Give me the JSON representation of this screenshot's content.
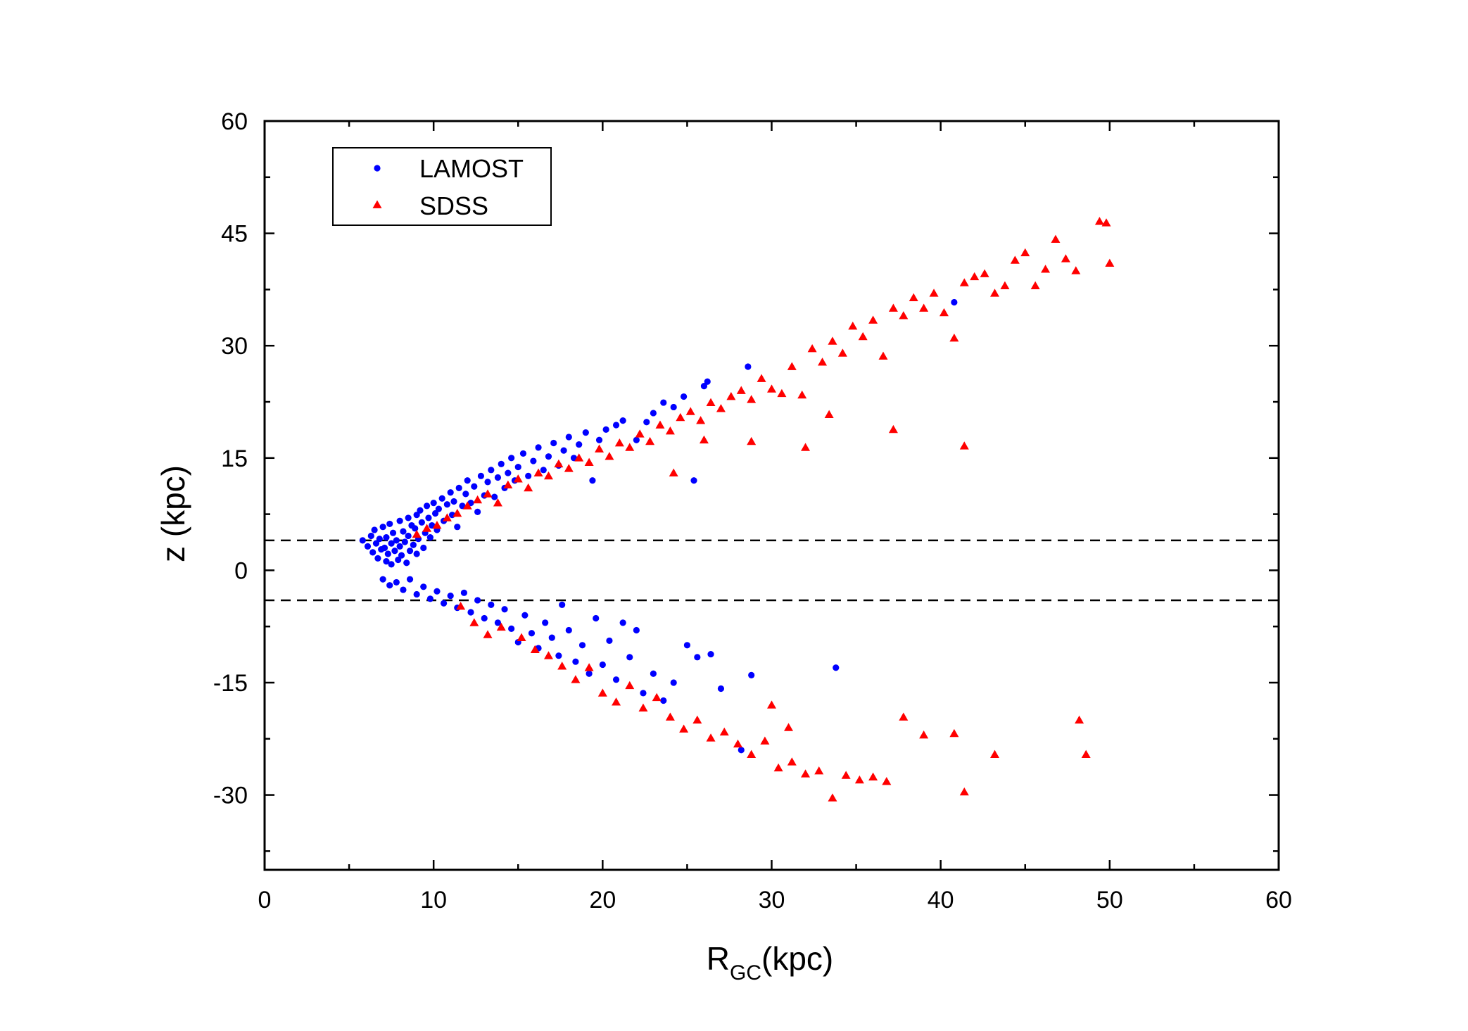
{
  "chart_data": {
    "type": "scatter",
    "title": "",
    "xlabel": "R",
    "xlabel_subscript": "GC",
    "xlabel_suffix": "(kpc)",
    "ylabel": "z (kpc)",
    "xlim": [
      0,
      60
    ],
    "ylim": [
      -40,
      60
    ],
    "xticks": [
      0,
      10,
      20,
      30,
      40,
      50,
      60
    ],
    "yticks": [
      -30,
      -15,
      0,
      15,
      30,
      45,
      60
    ],
    "x_minor_step": 5,
    "y_minor_step": 7.5,
    "grid": false,
    "legend_position": "top-left",
    "reference_lines": [
      {
        "style": "dashed",
        "y": 4
      },
      {
        "style": "dashed",
        "y": -4
      }
    ],
    "series": [
      {
        "name": "LAMOST",
        "marker": "circle",
        "color": "#0000ff",
        "points": [
          [
            5.8,
            4
          ],
          [
            6.1,
            3.2
          ],
          [
            6.3,
            4.6
          ],
          [
            6.4,
            2.4
          ],
          [
            6.5,
            5.4
          ],
          [
            6.6,
            3.6
          ],
          [
            6.7,
            1.6
          ],
          [
            6.8,
            4.2
          ],
          [
            6.9,
            2.8
          ],
          [
            7.0,
            5.8
          ],
          [
            7.1,
            3.0
          ],
          [
            7.2,
            1.2
          ],
          [
            7.2,
            4.4
          ],
          [
            7.3,
            2.2
          ],
          [
            7.4,
            6.2
          ],
          [
            7.5,
            3.6
          ],
          [
            7.5,
            0.8
          ],
          [
            7.6,
            5.0
          ],
          [
            7.7,
            2.6
          ],
          [
            7.8,
            4.0
          ],
          [
            7.9,
            1.4
          ],
          [
            8.0,
            6.6
          ],
          [
            8.0,
            3.2
          ],
          [
            8.1,
            2.0
          ],
          [
            8.2,
            5.2
          ],
          [
            8.3,
            3.8
          ],
          [
            8.4,
            1.0
          ],
          [
            8.5,
            7.0
          ],
          [
            8.5,
            4.6
          ],
          [
            8.6,
            2.6
          ],
          [
            8.7,
            6.0
          ],
          [
            8.8,
            3.4
          ],
          [
            8.9,
            5.6
          ],
          [
            9.0,
            7.4
          ],
          [
            9.0,
            2.2
          ],
          [
            9.1,
            4.2
          ],
          [
            9.2,
            8.0
          ],
          [
            9.3,
            6.4
          ],
          [
            9.4,
            3.0
          ],
          [
            9.5,
            5.0
          ],
          [
            9.6,
            8.6
          ],
          [
            9.7,
            7.0
          ],
          [
            9.8,
            4.4
          ],
          [
            9.9,
            6.0
          ],
          [
            10.0,
            9.0
          ],
          [
            10.1,
            7.6
          ],
          [
            10.2,
            5.4
          ],
          [
            10.3,
            8.2
          ],
          [
            10.5,
            9.6
          ],
          [
            10.6,
            6.6
          ],
          [
            10.8,
            8.8
          ],
          [
            11.0,
            10.4
          ],
          [
            11.1,
            7.4
          ],
          [
            11.2,
            9.2
          ],
          [
            11.4,
            5.8
          ],
          [
            11.5,
            11.0
          ],
          [
            11.7,
            8.6
          ],
          [
            11.9,
            10.2
          ],
          [
            12.0,
            12.0
          ],
          [
            12.2,
            9.0
          ],
          [
            12.4,
            11.2
          ],
          [
            12.6,
            7.8
          ],
          [
            12.8,
            12.6
          ],
          [
            13.0,
            10.0
          ],
          [
            13.2,
            11.8
          ],
          [
            13.4,
            13.4
          ],
          [
            13.6,
            9.8
          ],
          [
            13.8,
            12.4
          ],
          [
            14.0,
            14.2
          ],
          [
            14.2,
            11.0
          ],
          [
            14.4,
            13.0
          ],
          [
            14.6,
            15.0
          ],
          [
            14.8,
            12.0
          ],
          [
            15.0,
            13.8
          ],
          [
            15.3,
            15.6
          ],
          [
            15.6,
            12.6
          ],
          [
            15.9,
            14.6
          ],
          [
            16.2,
            16.4
          ],
          [
            16.5,
            13.4
          ],
          [
            16.8,
            15.2
          ],
          [
            17.1,
            17.0
          ],
          [
            17.4,
            14.0
          ],
          [
            17.7,
            16.0
          ],
          [
            18.0,
            17.8
          ],
          [
            18.3,
            15.0
          ],
          [
            18.6,
            16.8
          ],
          [
            19.0,
            18.4
          ],
          [
            19.4,
            12.0
          ],
          [
            19.8,
            17.4
          ],
          [
            20.2,
            18.8
          ],
          [
            20.8,
            19.4
          ],
          [
            21.2,
            20.0
          ],
          [
            22.0,
            17.4
          ],
          [
            22.6,
            19.8
          ],
          [
            23.0,
            21.0
          ],
          [
            23.6,
            22.4
          ],
          [
            24.2,
            21.8
          ],
          [
            24.8,
            23.2
          ],
          [
            25.4,
            12.0
          ],
          [
            26.0,
            24.6
          ],
          [
            26.2,
            25.2
          ],
          [
            28.6,
            27.2
          ],
          [
            40.8,
            35.8
          ],
          [
            7.0,
            -1.2
          ],
          [
            7.4,
            -2.0
          ],
          [
            7.8,
            -1.6
          ],
          [
            8.2,
            -2.6
          ],
          [
            8.6,
            -1.2
          ],
          [
            9.0,
            -3.2
          ],
          [
            9.4,
            -2.2
          ],
          [
            9.8,
            -3.8
          ],
          [
            10.2,
            -2.8
          ],
          [
            10.6,
            -4.4
          ],
          [
            11.0,
            -3.4
          ],
          [
            11.4,
            -5.0
          ],
          [
            11.8,
            -3.0
          ],
          [
            12.2,
            -5.6
          ],
          [
            12.6,
            -4.0
          ],
          [
            13.0,
            -6.4
          ],
          [
            13.4,
            -4.6
          ],
          [
            13.8,
            -7.0
          ],
          [
            14.2,
            -5.2
          ],
          [
            14.6,
            -7.8
          ],
          [
            15.0,
            -9.6
          ],
          [
            15.4,
            -6.0
          ],
          [
            15.8,
            -8.4
          ],
          [
            16.2,
            -10.4
          ],
          [
            16.6,
            -7.0
          ],
          [
            17.0,
            -9.0
          ],
          [
            17.4,
            -11.4
          ],
          [
            17.6,
            -4.6
          ],
          [
            18.0,
            -8.0
          ],
          [
            18.4,
            -12.2
          ],
          [
            18.8,
            -10.0
          ],
          [
            19.2,
            -13.8
          ],
          [
            19.6,
            -6.4
          ],
          [
            20.0,
            -12.6
          ],
          [
            20.4,
            -9.4
          ],
          [
            20.8,
            -14.6
          ],
          [
            21.2,
            -7.0
          ],
          [
            21.6,
            -11.6
          ],
          [
            22.0,
            -8.0
          ],
          [
            22.4,
            -16.4
          ],
          [
            23.0,
            -13.8
          ],
          [
            23.6,
            -17.4
          ],
          [
            24.2,
            -15.0
          ],
          [
            25.0,
            -10.0
          ],
          [
            25.6,
            -11.6
          ],
          [
            26.4,
            -11.2
          ],
          [
            27.0,
            -15.8
          ],
          [
            28.2,
            -24.0
          ],
          [
            28.8,
            -14.0
          ],
          [
            33.8,
            -13.0
          ]
        ]
      },
      {
        "name": "SDSS",
        "marker": "triangle",
        "color": "#ff0000",
        "points": [
          [
            9.0,
            4.8
          ],
          [
            9.6,
            5.6
          ],
          [
            10.2,
            6.0
          ],
          [
            10.8,
            7.0
          ],
          [
            11.4,
            7.6
          ],
          [
            12.0,
            8.6
          ],
          [
            12.6,
            9.4
          ],
          [
            13.2,
            10.2
          ],
          [
            13.8,
            9.0
          ],
          [
            14.4,
            11.4
          ],
          [
            15.0,
            12.2
          ],
          [
            15.6,
            11.0
          ],
          [
            16.2,
            13.0
          ],
          [
            16.8,
            12.6
          ],
          [
            17.4,
            14.2
          ],
          [
            18.0,
            13.6
          ],
          [
            18.6,
            15.0
          ],
          [
            19.2,
            14.4
          ],
          [
            19.8,
            16.2
          ],
          [
            20.4,
            15.2
          ],
          [
            21.0,
            17.0
          ],
          [
            21.6,
            16.4
          ],
          [
            22.2,
            18.2
          ],
          [
            22.8,
            17.2
          ],
          [
            23.4,
            19.4
          ],
          [
            24.0,
            18.6
          ],
          [
            24.6,
            20.4
          ],
          [
            25.2,
            21.2
          ],
          [
            25.8,
            20.0
          ],
          [
            26.4,
            22.4
          ],
          [
            27.0,
            21.6
          ],
          [
            27.6,
            23.2
          ],
          [
            28.2,
            24.0
          ],
          [
            28.8,
            22.8
          ],
          [
            29.4,
            25.6
          ],
          [
            30.0,
            24.2
          ],
          [
            30.6,
            23.6
          ],
          [
            31.2,
            27.2
          ],
          [
            31.8,
            23.4
          ],
          [
            32.4,
            29.6
          ],
          [
            33.0,
            27.8
          ],
          [
            33.6,
            30.6
          ],
          [
            34.2,
            29.0
          ],
          [
            34.8,
            32.6
          ],
          [
            35.4,
            31.2
          ],
          [
            36.0,
            33.4
          ],
          [
            36.6,
            28.6
          ],
          [
            37.2,
            35.0
          ],
          [
            37.8,
            34.0
          ],
          [
            38.4,
            36.4
          ],
          [
            39.0,
            35.0
          ],
          [
            39.6,
            37.0
          ],
          [
            40.2,
            34.4
          ],
          [
            40.8,
            31.0
          ],
          [
            41.4,
            38.4
          ],
          [
            42.0,
            39.2
          ],
          [
            42.6,
            39.6
          ],
          [
            43.2,
            37.0
          ],
          [
            43.8,
            38.0
          ],
          [
            44.4,
            41.4
          ],
          [
            45.0,
            42.4
          ],
          [
            45.6,
            38.0
          ],
          [
            46.2,
            40.2
          ],
          [
            46.8,
            44.2
          ],
          [
            47.4,
            41.6
          ],
          [
            48.0,
            40.0
          ],
          [
            49.4,
            46.6
          ],
          [
            49.8,
            46.4
          ],
          [
            50.0,
            41.0
          ],
          [
            24.2,
            13.0
          ],
          [
            26.0,
            17.4
          ],
          [
            28.8,
            17.2
          ],
          [
            32.0,
            16.4
          ],
          [
            33.4,
            20.8
          ],
          [
            37.2,
            18.8
          ],
          [
            41.4,
            16.6
          ],
          [
            11.6,
            -4.8
          ],
          [
            12.4,
            -7.0
          ],
          [
            13.2,
            -8.6
          ],
          [
            14.0,
            -7.6
          ],
          [
            15.2,
            -9.0
          ],
          [
            16.0,
            -10.6
          ],
          [
            16.8,
            -11.4
          ],
          [
            17.6,
            -12.8
          ],
          [
            18.4,
            -14.6
          ],
          [
            19.2,
            -13.0
          ],
          [
            20.0,
            -16.4
          ],
          [
            20.8,
            -17.6
          ],
          [
            21.6,
            -15.4
          ],
          [
            22.4,
            -18.4
          ],
          [
            23.2,
            -17.0
          ],
          [
            24.0,
            -19.6
          ],
          [
            24.8,
            -21.2
          ],
          [
            25.6,
            -20.0
          ],
          [
            26.4,
            -22.4
          ],
          [
            27.2,
            -21.6
          ],
          [
            28.0,
            -23.2
          ],
          [
            28.8,
            -24.6
          ],
          [
            29.6,
            -22.8
          ],
          [
            30.4,
            -26.4
          ],
          [
            31.2,
            -25.6
          ],
          [
            32.0,
            -27.2
          ],
          [
            32.8,
            -26.8
          ],
          [
            33.6,
            -30.4
          ],
          [
            34.4,
            -27.4
          ],
          [
            35.2,
            -28.0
          ],
          [
            36.0,
            -27.6
          ],
          [
            36.8,
            -28.2
          ],
          [
            37.8,
            -19.6
          ],
          [
            39.0,
            -22.0
          ],
          [
            40.8,
            -21.8
          ],
          [
            41.4,
            -29.6
          ],
          [
            43.2,
            -24.6
          ],
          [
            48.2,
            -20.0
          ],
          [
            48.6,
            -24.6
          ],
          [
            30.0,
            -18.0
          ],
          [
            31.0,
            -21.0
          ]
        ]
      }
    ]
  }
}
